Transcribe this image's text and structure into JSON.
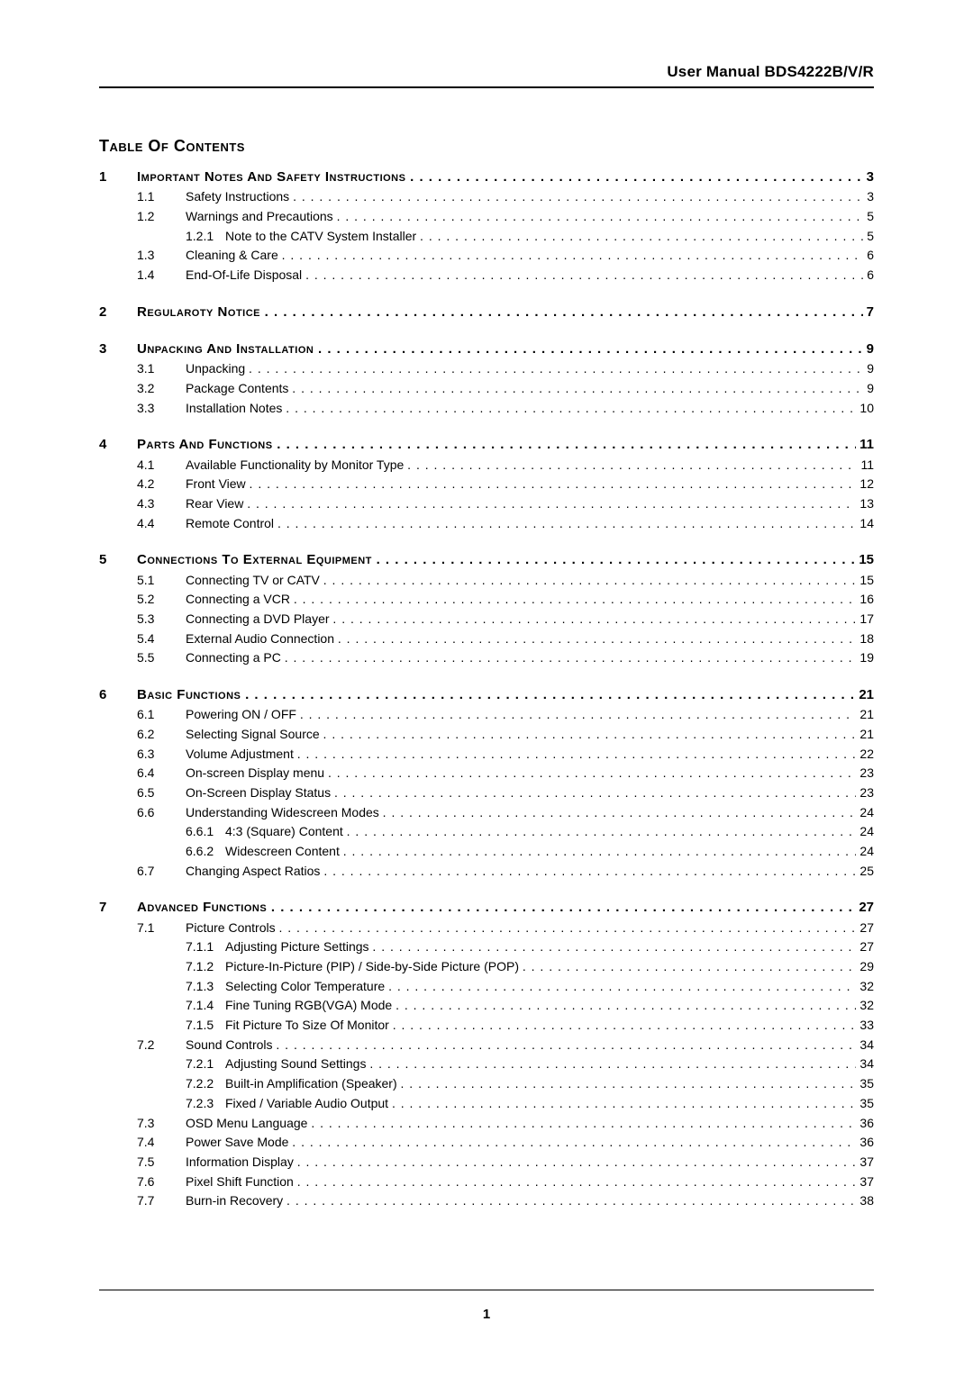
{
  "header": {
    "text": "User Manual BDS4222B/V/R"
  },
  "toc_title": "Table Of Contents",
  "page_number": "1",
  "chapters": [
    {
      "num": "1",
      "title": "Important Notes And Safety Instructions",
      "page": "3",
      "items": [
        {
          "num": "1.1",
          "title": "Safety Instructions",
          "page": "3"
        },
        {
          "num": "1.2",
          "title": "Warnings and Precautions",
          "page": "5",
          "subs": [
            {
              "num": "1.2.1",
              "title": "Note to the CATV System Installer",
              "page": "5"
            }
          ]
        },
        {
          "num": "1.3",
          "title": "Cleaning & Care",
          "page": "6"
        },
        {
          "num": "1.4",
          "title": "End-Of-Life Disposal",
          "page": "6"
        }
      ]
    },
    {
      "num": "2",
      "title": "Regularoty Notice",
      "page": "7"
    },
    {
      "num": "3",
      "title": "Unpacking And Installation",
      "page": "9",
      "items": [
        {
          "num": "3.1",
          "title": "Unpacking",
          "page": "9"
        },
        {
          "num": "3.2",
          "title": "Package Contents",
          "page": "9"
        },
        {
          "num": "3.3",
          "title": "Installation Notes",
          "page": "10"
        }
      ]
    },
    {
      "num": "4",
      "title": "Parts And Functions",
      "page": "11",
      "items": [
        {
          "num": "4.1",
          "title": "Available Functionality by Monitor Type",
          "page": "11"
        },
        {
          "num": "4.2",
          "title": "Front  View",
          "page": "12"
        },
        {
          "num": "4.3",
          "title": "Rear View",
          "page": "13"
        },
        {
          "num": "4.4",
          "title": "Remote Control",
          "page": "14"
        }
      ]
    },
    {
      "num": "5",
      "title": "Connections To External Equipment",
      "page": "15",
      "items": [
        {
          "num": "5.1",
          "title": "Connecting TV or CATV",
          "page": "15"
        },
        {
          "num": "5.2",
          "title": "Connecting a VCR",
          "page": "16"
        },
        {
          "num": "5.3",
          "title": "Connecting a DVD Player",
          "page": "17"
        },
        {
          "num": "5.4",
          "title": "External Audio Connection",
          "page": "18"
        },
        {
          "num": "5.5",
          "title": "Connecting a PC",
          "page": "19"
        }
      ]
    },
    {
      "num": "6",
      "title": "Basic Functions",
      "page": "21",
      "items": [
        {
          "num": "6.1",
          "title": "Powering ON / OFF",
          "page": "21"
        },
        {
          "num": "6.2",
          "title": "Selecting Signal Source",
          "page": "21"
        },
        {
          "num": "6.3",
          "title": "Volume Adjustment",
          "page": "22"
        },
        {
          "num": "6.4",
          "title": "On-screen Display menu",
          "page": "23"
        },
        {
          "num": "6.5",
          "title": "On-Screen Display Status",
          "page": "23"
        },
        {
          "num": "6.6",
          "title": "Understanding Widescreen Modes",
          "page": "24",
          "subs": [
            {
              "num": "6.6.1",
              "title": "4:3 (Square) Content",
              "page": "24"
            },
            {
              "num": "6.6.2",
              "title": "Widescreen Content",
              "page": "24"
            }
          ]
        },
        {
          "num": "6.7",
          "title": "Changing Aspect Ratios",
          "page": "25"
        }
      ]
    },
    {
      "num": "7",
      "title": "Advanced Functions",
      "page": "27",
      "items": [
        {
          "num": "7.1",
          "title": "Picture Controls",
          "page": "27",
          "subs": [
            {
              "num": "7.1.1",
              "title": "Adjusting Picture Settings",
              "page": "27"
            },
            {
              "num": "7.1.2",
              "title": "Picture-In-Picture (PIP) / Side-by-Side Picture (POP)",
              "page": "29"
            },
            {
              "num": "7.1.3",
              "title": "Selecting Color Temperature",
              "page": "32"
            },
            {
              "num": "7.1.4",
              "title": "Fine Tuning RGB(VGA) Mode",
              "page": "32"
            },
            {
              "num": "7.1.5",
              "title": "Fit Picture To Size Of Monitor",
              "page": "33"
            }
          ]
        },
        {
          "num": "7.2",
          "title": "Sound Controls",
          "page": "34",
          "subs": [
            {
              "num": "7.2.1",
              "title": "Adjusting Sound Settings",
              "page": "34"
            },
            {
              "num": "7.2.2",
              "title": "Built-in Amplification (Speaker)",
              "page": "35"
            },
            {
              "num": "7.2.3",
              "title": "Fixed / Variable Audio Output",
              "page": "35"
            }
          ]
        },
        {
          "num": "7.3",
          "title": "OSD Menu Language",
          "page": "36"
        },
        {
          "num": "7.4",
          "title": "Power Save Mode",
          "page": "36"
        },
        {
          "num": "7.5",
          "title": "Information Display",
          "page": "37"
        },
        {
          "num": "7.6",
          "title": "Pixel Shift Function",
          "page": "37"
        },
        {
          "num": "7.7",
          "title": "Burn-in Recovery",
          "page": "38"
        }
      ]
    }
  ]
}
